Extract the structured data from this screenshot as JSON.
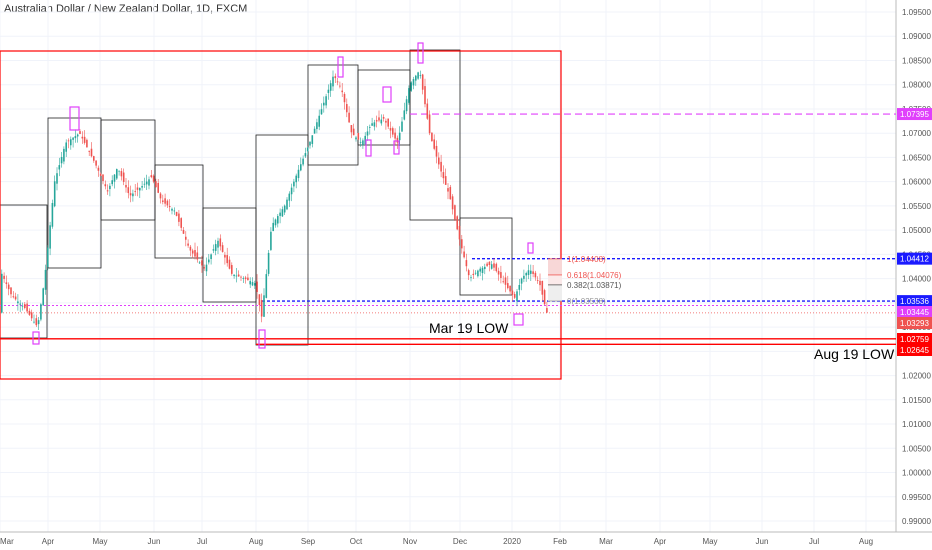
{
  "title": "Australian Dollar / New Zealand Dollar, 1D, FXCM",
  "chart_data": {
    "type": "candlestick",
    "title": "Australian Dollar / New Zealand Dollar, 1D, FXCM",
    "ylim": [
      0.9875,
      1.0975
    ],
    "y_ticks": [
      "1.09500",
      "1.09000",
      "1.08500",
      "1.08000",
      "1.07500",
      "1.07000",
      "1.06500",
      "1.06000",
      "1.05500",
      "1.05000",
      "1.04500",
      "1.04000",
      "1.03500",
      "1.03000",
      "1.02500",
      "1.02000",
      "1.01500",
      "1.01000",
      "1.00500",
      "1.00000",
      "0.99500",
      "0.99000"
    ],
    "x_ticks": [
      "Mar",
      "Apr",
      "May",
      "Jun",
      "Jul",
      "Aug",
      "Sep",
      "Oct",
      "Nov",
      "Dec",
      "2020",
      "Feb",
      "Mar",
      "Apr",
      "May",
      "Jun",
      "Jul",
      "Aug"
    ],
    "grid": true,
    "candle_colors": {
      "up": "#26a69a",
      "down": "#ef5350"
    },
    "price_path": [
      [
        0,
        1.042
      ],
      [
        12,
        1.0365
      ],
      [
        25,
        1.034
      ],
      [
        38,
        1.03
      ],
      [
        45,
        1.04
      ],
      [
        55,
        1.06
      ],
      [
        66,
        1.068
      ],
      [
        80,
        1.07
      ],
      [
        95,
        1.064
      ],
      [
        108,
        1.058
      ],
      [
        118,
        1.063
      ],
      [
        130,
        1.057
      ],
      [
        142,
        1.059
      ],
      [
        152,
        1.061
      ],
      [
        162,
        1.056
      ],
      [
        175,
        1.054
      ],
      [
        190,
        1.046
      ],
      [
        205,
        1.042
      ],
      [
        218,
        1.048
      ],
      [
        232,
        1.041
      ],
      [
        245,
        1.04
      ],
      [
        256,
        1.039
      ],
      [
        262,
        1.032
      ],
      [
        272,
        1.051
      ],
      [
        285,
        1.055
      ],
      [
        298,
        1.062
      ],
      [
        310,
        1.068
      ],
      [
        322,
        1.075
      ],
      [
        334,
        1.082
      ],
      [
        342,
        1.079
      ],
      [
        352,
        1.07
      ],
      [
        362,
        1.068
      ],
      [
        372,
        1.072
      ],
      [
        384,
        1.073
      ],
      [
        398,
        1.068
      ],
      [
        410,
        1.08
      ],
      [
        420,
        1.083
      ],
      [
        430,
        1.07
      ],
      [
        440,
        1.063
      ],
      [
        450,
        1.057
      ],
      [
        460,
        1.048
      ],
      [
        470,
        1.04
      ],
      [
        480,
        1.042
      ],
      [
        492,
        1.043
      ],
      [
        505,
        1.039
      ],
      [
        515,
        1.036
      ],
      [
        522,
        1.04
      ],
      [
        530,
        1.042
      ],
      [
        540,
        1.039
      ],
      [
        547,
        1.033
      ]
    ],
    "series": [
      {
        "name": "levels",
        "values": [
          1.07395,
          1.04412,
          1.03536,
          1.03445,
          1.03293,
          1.02759,
          1.02645
        ]
      }
    ],
    "price_labels": [
      {
        "text": "1.07395",
        "value": 1.07395,
        "color": "#e040fb"
      },
      {
        "text": "1.04412",
        "value": 1.04412,
        "color": "#1a1aff"
      },
      {
        "text": "1.03536",
        "value": 1.03536,
        "color": "#1a1aff"
      },
      {
        "text": "1.03445",
        "value": 1.03445,
        "color": "#e040fb"
      },
      {
        "text": "1.03293",
        "value": 1.03293,
        "color": "#ef5350"
      },
      {
        "text": "1.02759",
        "value": 1.02759,
        "color": "#ff0000"
      },
      {
        "text": "1.02645",
        "value": 1.02645,
        "color": "#ff0000"
      }
    ],
    "fib_levels": [
      {
        "text": "1(1.04408)",
        "value": 1.04408,
        "color": "#ef5350"
      },
      {
        "text": "0.618(1.04076)",
        "value": 1.04076,
        "color": "#ef5350"
      },
      {
        "text": "0.382(1.03871)",
        "value": 1.03871,
        "color": "#555555"
      },
      {
        "text": "0(1.03538)",
        "value": 1.03538,
        "color": "#999999"
      }
    ],
    "annotations": [
      {
        "text": "Mar 19 LOW"
      },
      {
        "text": "Aug 19 LOW"
      }
    ],
    "colors": {
      "magenta": "#e040fb",
      "blue": "#1a1aff",
      "red": "#ff0000",
      "box": "#000000"
    }
  }
}
